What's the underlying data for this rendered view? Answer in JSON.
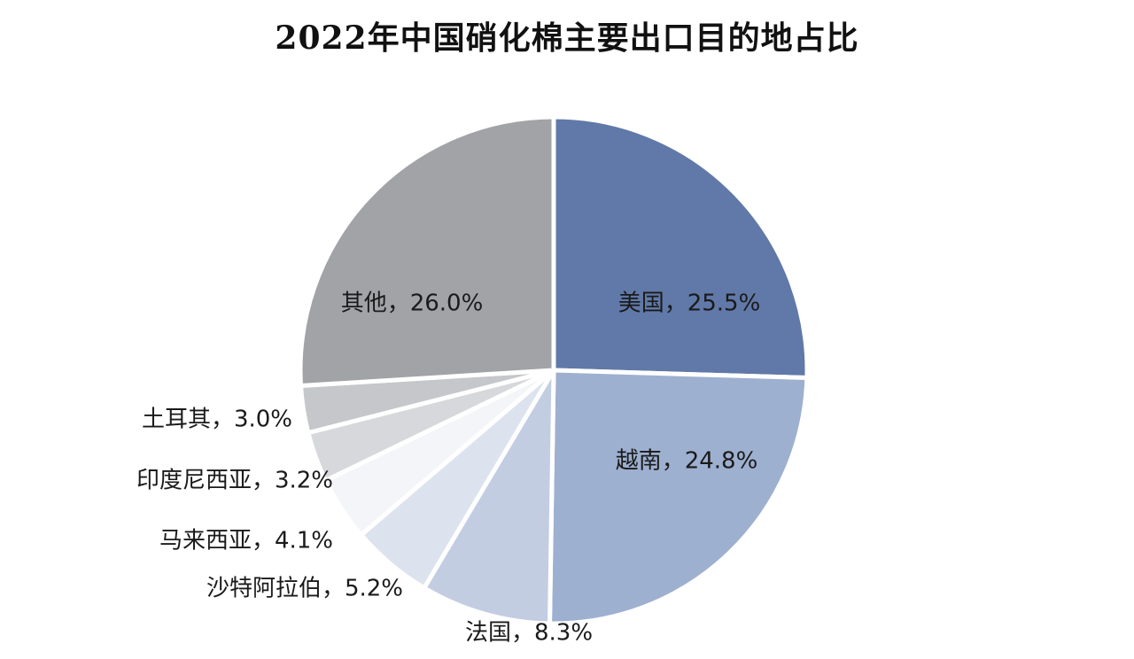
{
  "title": "2022年中国硝化棉主要出口目的地占比",
  "chart_data": {
    "type": "pie",
    "title": "2022年中国硝化棉主要出口目的地占比",
    "unit": "%",
    "slices": [
      {
        "name": "美国",
        "value": 25.5,
        "label": "美国，25.5%",
        "color": "#6079a8"
      },
      {
        "name": "越南",
        "value": 24.8,
        "label": "越南，24.8%",
        "color": "#9eb0d0"
      },
      {
        "name": "法国",
        "value": 8.3,
        "label": "法国，8.3%",
        "color": "#c3cde2"
      },
      {
        "name": "沙特阿拉伯",
        "value": 5.2,
        "label": "沙特阿拉伯，5.2%",
        "color": "#dde3ee"
      },
      {
        "name": "马来西亚",
        "value": 4.1,
        "label": "马来西亚，4.1%",
        "color": "#f4f5f8"
      },
      {
        "name": "印度尼西亚",
        "value": 3.2,
        "label": "印度尼西亚，3.2%",
        "color": "#d7d8db"
      },
      {
        "name": "土耳其",
        "value": 3.0,
        "label": "土耳其，3.0%",
        "color": "#c6c7ca"
      },
      {
        "name": "其他",
        "value": 26.0,
        "label": "其他，26.0%",
        "color": "#a2a3a7"
      }
    ],
    "legend": "none",
    "label_placement": "data labels inside large slices, outside-left for small slices"
  }
}
